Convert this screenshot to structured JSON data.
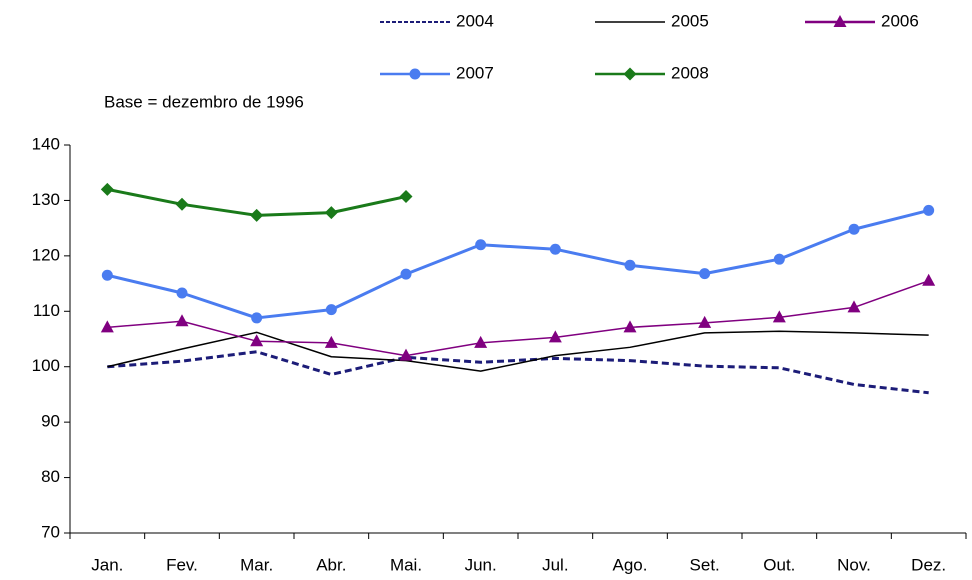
{
  "chart_data": {
    "type": "line",
    "subtitle": "Base = dezembro de 1996",
    "categories": [
      "Jan.",
      "Fev.",
      "Mar.",
      "Abr.",
      "Mai.",
      "Jun.",
      "Jul.",
      "Ago.",
      "Set.",
      "Out.",
      "Nov.",
      "Dez."
    ],
    "series": [
      {
        "name": "2004",
        "color": "#1c1c78",
        "dash": true,
        "marker": "none",
        "values": [
          100,
          101,
          102.7,
          98.6,
          101.7,
          100.8,
          101.5,
          101.1,
          100.1,
          99.8,
          96.8,
          95.3
        ]
      },
      {
        "name": "2005",
        "color": "#000000",
        "dash": false,
        "marker": "none",
        "values": [
          100,
          103.2,
          106.2,
          101.8,
          101.1,
          99.2,
          102,
          103.5,
          106.1,
          106.4,
          106.1,
          105.7
        ]
      },
      {
        "name": "2006",
        "color": "#800080",
        "dash": false,
        "marker": "triangle",
        "values": [
          107.1,
          108.2,
          104.6,
          104.3,
          102,
          104.3,
          105.3,
          107.1,
          107.9,
          108.9,
          110.7,
          115.5
        ]
      },
      {
        "name": "2007",
        "color": "#4a7cf0",
        "dash": false,
        "marker": "circle",
        "values": [
          116.5,
          113.3,
          108.8,
          110.3,
          116.7,
          122,
          121.2,
          118.3,
          116.8,
          119.4,
          124.8,
          128.2
        ]
      },
      {
        "name": "2008",
        "color": "#1a7a1a",
        "dash": false,
        "marker": "diamond",
        "values": [
          132,
          129.3,
          127.3,
          127.8,
          130.7,
          null,
          null,
          null,
          null,
          null,
          null,
          null
        ]
      }
    ],
    "ylim": [
      70,
      140
    ],
    "yticks": [
      70,
      80,
      90,
      100,
      110,
      120,
      130,
      140
    ],
    "grid": false
  }
}
